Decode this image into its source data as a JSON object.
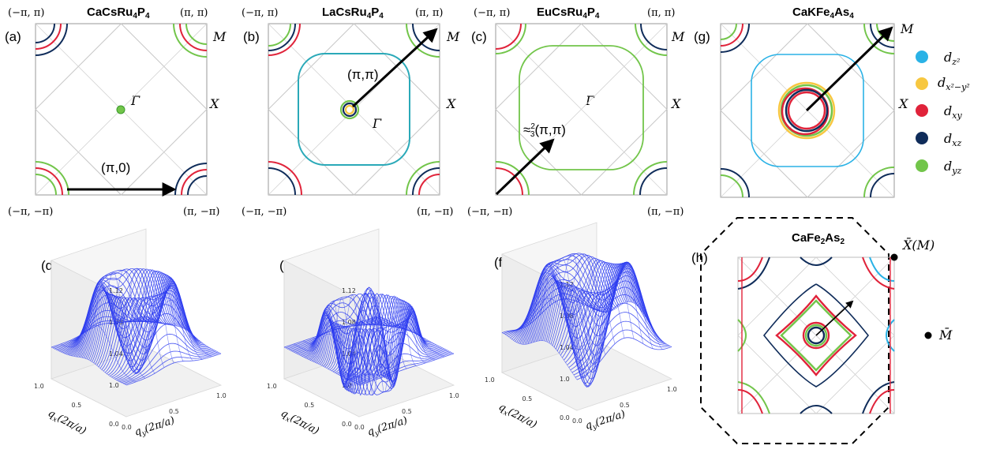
{
  "panels_top": [
    {
      "label": "(a)",
      "title_main": "CaCsRu",
      "title_sub": "4",
      "title_main2": "P",
      "title_sub2": "4",
      "corner_tl": "(−π, π)",
      "corner_tr": "(π, π)",
      "corner_bl": "(−π, −π)",
      "corner_br": "(π, −π)",
      "point_M": "M",
      "point_X": "X",
      "point_G": "Γ",
      "vector_label": "(π,0)"
    },
    {
      "label": "(b)",
      "title_main": "LaCsRu",
      "title_sub": "4",
      "title_main2": "P",
      "title_sub2": "4",
      "corner_tl": "(−π, π)",
      "corner_tr": "(π, π)",
      "corner_bl": "(−π, −π)",
      "corner_br": "(π, −π)",
      "point_M": "M",
      "point_X": "X",
      "point_G": "Γ",
      "vector_label": "(π,π)"
    },
    {
      "label": "(c)",
      "title_main": "EuCsRu",
      "title_sub": "4",
      "title_main2": "P",
      "title_sub2": "4",
      "corner_tl": "(−π, π)",
      "corner_tr": "(π, π)",
      "corner_bl": "(−π, −π)",
      "corner_br": "(π, −π)",
      "point_M": "M",
      "point_X": "X",
      "point_G": "Γ",
      "vector_label_pre": "≈",
      "vector_label_num": "2",
      "vector_label_den": "3",
      "vector_label_post": "(π,π)"
    },
    {
      "label": "(g)",
      "title_main": "CaKFe",
      "title_sub": "4",
      "title_main2": "As",
      "title_sub2": "4",
      "point_M": "M",
      "point_X": "X"
    }
  ],
  "legend": {
    "items": [
      {
        "name": "d",
        "sub": "z²",
        "color": "#2ab2e6"
      },
      {
        "name": "d",
        "sub": "x²−y²",
        "color": "#f7c740"
      },
      {
        "name": "d",
        "sub": "xy",
        "color": "#e0233a"
      },
      {
        "name": "d",
        "sub": "xz",
        "color": "#0f2c5a"
      },
      {
        "name": "d",
        "sub": "yz",
        "color": "#72c54a"
      }
    ]
  },
  "panels_3d": [
    {
      "label": "(d)",
      "zticks": [
        "1.12",
        "1.08",
        "1.04",
        "1.0"
      ]
    },
    {
      "label": "(e)",
      "zticks": [
        "1.12",
        "1.08",
        "1.04",
        "1.0"
      ]
    },
    {
      "label": "(f)",
      "zticks": [
        "1.12",
        "1.08",
        "1.04",
        "1.0"
      ]
    }
  ],
  "axes3d": {
    "xlabel_q": "q",
    "xlabel_sub": "x",
    "ylabel_sub": "y",
    "unit": "(2π/a)",
    "xticks": [
      "0.0",
      "0.5",
      "1.0"
    ],
    "yticks": [
      "0.0",
      "0.5",
      "1.0"
    ]
  },
  "panel_h": {
    "label": "(h)",
    "title_main": "CaFe",
    "title_sub": "2",
    "title_main2": "As",
    "title_sub2": "2",
    "point_Xbar": "X̄(M)",
    "point_Mbar": "M̄"
  },
  "colors": {
    "dz2": "#2ab2e6",
    "dx2y2": "#f7c740",
    "dxy": "#e0233a",
    "dxz": "#0f2c5a",
    "dyz": "#72c54a",
    "surface": "#2d3cf0",
    "frame": "#9a9a9a",
    "grid": "#bdbdbd"
  }
}
